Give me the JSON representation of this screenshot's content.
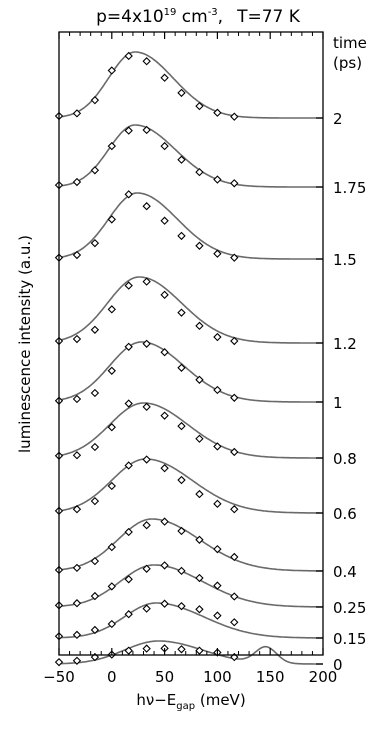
{
  "chart_data": {
    "type": "line",
    "title": {
      "p_prefix": "p=4x10",
      "p_exp": "19",
      "p_unit": " cm",
      "p_unit_exp": "-3",
      "sep": ",",
      "temp": "T=77 K"
    },
    "xlabel": {
      "main": "hν−E",
      "sub": "gap",
      "unit": " (meV)"
    },
    "ylabel": "luminescence intensity (a.u.)",
    "right_axis_label": [
      "time",
      "(ps)"
    ],
    "xlim": [
      -50,
      200
    ],
    "xticks": [
      -50,
      0,
      50,
      100,
      150,
      200
    ],
    "xtick_labels": [
      "−50",
      "0",
      "50",
      "100",
      "150",
      "200"
    ],
    "marker_x": [
      -50,
      -33,
      -16,
      0,
      16,
      33,
      50,
      66,
      83,
      100,
      116
    ],
    "series": [
      {
        "label": "2",
        "baseline": 118,
        "height": 66,
        "mu": 22,
        "sig_l": 25,
        "sig_r": 36,
        "bump": 0,
        "markers": [
          0.03,
          0.07,
          0.27,
          0.72,
          0.94,
          0.86,
          0.61,
          0.38,
          0.18,
          0.08,
          0.02
        ]
      },
      {
        "label": "1.75",
        "baseline": 187,
        "height": 62,
        "mu": 22,
        "sig_l": 25,
        "sig_r": 38,
        "bump": 0,
        "markers": [
          0.03,
          0.08,
          0.27,
          0.66,
          0.91,
          0.92,
          0.66,
          0.44,
          0.24,
          0.12,
          0.06
        ]
      },
      {
        "label": "1.5",
        "baseline": 259,
        "height": 66,
        "mu": 24,
        "sig_l": 27,
        "sig_r": 38,
        "bump": 0,
        "markers": [
          0.02,
          0.06,
          0.24,
          0.6,
          0.98,
          0.8,
          0.58,
          0.35,
          0.2,
          0.08,
          0.02
        ]
      },
      {
        "label": "1.2",
        "baseline": 343,
        "height": 66,
        "mu": 26,
        "sig_l": 30,
        "sig_r": 40,
        "bump": 0,
        "markers": [
          0.03,
          0.06,
          0.2,
          0.51,
          0.87,
          0.93,
          0.73,
          0.46,
          0.26,
          0.09,
          0.03
        ]
      },
      {
        "label": "1",
        "baseline": 402,
        "height": 60,
        "mu": 28,
        "sig_l": 30,
        "sig_r": 40,
        "bump": 0,
        "markers": [
          0.02,
          0.05,
          0.15,
          0.52,
          0.92,
          0.97,
          0.83,
          0.57,
          0.37,
          0.2,
          0.07
        ]
      },
      {
        "label": "0.8",
        "baseline": 458,
        "height": 55,
        "mu": 30,
        "sig_l": 32,
        "sig_r": 42,
        "bump": 0,
        "markers": [
          0.04,
          0.05,
          0.2,
          0.56,
          0.99,
          0.93,
          0.77,
          0.58,
          0.35,
          0.21,
          0.11
        ]
      },
      {
        "label": "0.6",
        "baseline": 513,
        "height": 54,
        "mu": 32,
        "sig_l": 32,
        "sig_r": 44,
        "bump": 0,
        "markers": [
          0.04,
          0.07,
          0.22,
          0.5,
          0.88,
          0.99,
          0.83,
          0.61,
          0.35,
          0.17,
          0.07
        ]
      },
      {
        "label": "0.4",
        "baseline": 571,
        "height": 52,
        "mu": 38,
        "sig_l": 32,
        "sig_r": 45,
        "bump": 0,
        "markers": [
          0.02,
          0.06,
          0.19,
          0.46,
          0.75,
          0.88,
          0.95,
          0.77,
          0.6,
          0.42,
          0.27
        ]
      },
      {
        "label": "0.25",
        "baseline": 607,
        "height": 42,
        "mu": 40,
        "sig_l": 32,
        "sig_r": 46,
        "bump": 0,
        "markers": [
          0.04,
          0.09,
          0.26,
          0.49,
          0.66,
          0.91,
          0.99,
          0.86,
          0.69,
          0.51,
          0.25
        ]
      },
      {
        "label": "0.15",
        "baseline": 638,
        "height": 35,
        "mu": 42,
        "sig_l": 30,
        "sig_r": 45,
        "bump": 0,
        "markers": [
          0.05,
          0.09,
          0.23,
          0.4,
          0.68,
          0.84,
          0.98,
          0.91,
          0.82,
          0.64,
          0.45
        ]
      },
      {
        "label": "0",
        "baseline": 664,
        "height": 23,
        "mu": 44,
        "sig_l": 32,
        "sig_r": 42,
        "bump": 1,
        "markers": [
          0.08,
          0.14,
          0.3,
          0.41,
          0.58,
          0.67,
          0.68,
          0.64,
          0.58,
          0.5,
          0.3
        ]
      }
    ]
  }
}
